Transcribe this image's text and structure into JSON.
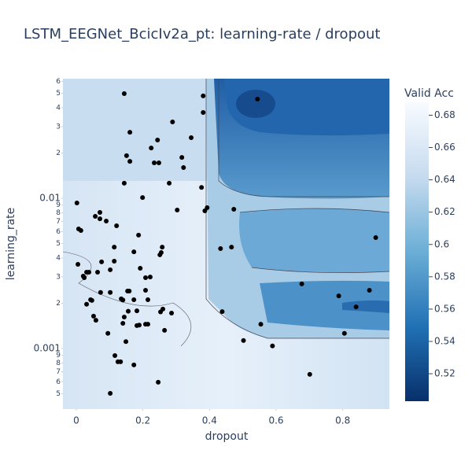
{
  "chart_data": {
    "type": "contour",
    "title": "LSTM_EEGNet_BcicIv2a_pt: learning-rate / dropout",
    "x_label": "dropout",
    "y_label": "learning_rate",
    "colorbar_title": "Valid Acc",
    "xlim": [
      -0.04,
      0.94
    ],
    "xticks": [
      0,
      0.2,
      0.4,
      0.6,
      0.8
    ],
    "ylim": [
      0.000395,
      0.0625
    ],
    "y_log": true,
    "yticks": [
      {
        "value": 0.06,
        "label": "6"
      },
      {
        "value": 0.05,
        "label": "5"
      },
      {
        "value": 0.04,
        "label": "4"
      },
      {
        "value": 0.03,
        "label": "3"
      },
      {
        "value": 0.02,
        "label": "2"
      },
      0.01,
      {
        "value": 0.009,
        "label": "9"
      },
      {
        "value": 0.008,
        "label": "8"
      },
      {
        "value": 0.007,
        "label": "7"
      },
      {
        "value": 0.006,
        "label": "6"
      },
      {
        "value": 0.005,
        "label": "5"
      },
      {
        "value": 0.004,
        "label": "4"
      },
      {
        "value": 0.003,
        "label": "3"
      },
      {
        "value": 0.002,
        "label": "2"
      },
      0.001,
      {
        "value": 0.0009,
        "label": "9"
      },
      {
        "value": 0.0008,
        "label": "8"
      },
      {
        "value": 0.0007,
        "label": "7"
      },
      {
        "value": 0.0006,
        "label": "6"
      },
      {
        "value": 0.0005,
        "label": "5"
      }
    ],
    "colorbar_lim": [
      0.503,
      0.688
    ],
    "colorbar_ticks": [
      0.52,
      0.54,
      0.56,
      0.58,
      0.6,
      0.62,
      0.64,
      0.66,
      0.68
    ],
    "colorscale": [
      "#08306b",
      "#2171b5",
      "#6baed6",
      "#c6dbef",
      "#f7fbff"
    ],
    "point_color": "#000000",
    "points": {
      "x": [
        0.144,
        0.544,
        0.381,
        0.381,
        0.289,
        0.161,
        0.345,
        0.225,
        0.244,
        0.151,
        0.161,
        0.234,
        0.248,
        0.317,
        0.322,
        0.144,
        0.279,
        0.376,
        0.199,
        0.002,
        0.071,
        0.057,
        0.071,
        0.09,
        0.303,
        0.393,
        0.386,
        0.473,
        0.007,
        0.014,
        0.121,
        0.187,
        0.114,
        0.258,
        0.433,
        0.466,
        0.173,
        0.255,
        0.251,
        0.005,
        0.076,
        0.114,
        0.031,
        0.038,
        0.021,
        0.024,
        0.064,
        0.102,
        0.192,
        0.208,
        0.222,
        0.677,
        0.073,
        0.102,
        0.154,
        0.159,
        0.208,
        0.88,
        0.788,
        0.043,
        0.047,
        0.031,
        0.135,
        0.14,
        0.173,
        0.215,
        0.84,
        0.438,
        0.26,
        0.253,
        0.286,
        0.182,
        0.052,
        0.059,
        0.144,
        0.156,
        0.14,
        0.182,
        0.189,
        0.208,
        0.215,
        0.554,
        0.095,
        0.265,
        0.805,
        0.502,
        0.149,
        0.589,
        0.116,
        0.125,
        0.133,
        0.173,
        0.701,
        0.246,
        0.102,
        0.899
      ],
      "y": [
        0.0497,
        0.0457,
        0.048,
        0.0372,
        0.0322,
        0.0275,
        0.0253,
        0.0216,
        0.0244,
        0.0192,
        0.0176,
        0.0172,
        0.0172,
        0.0187,
        0.016,
        0.0126,
        0.0126,
        0.0118,
        0.0101,
        0.0093,
        0.00805,
        0.00758,
        0.0073,
        0.00705,
        0.00834,
        0.00865,
        0.00824,
        0.00845,
        0.00625,
        0.0061,
        0.00656,
        0.00568,
        0.00473,
        0.00473,
        0.00462,
        0.00473,
        0.0044,
        0.00435,
        0.0042,
        0.00363,
        0.00377,
        0.00381,
        0.00322,
        0.00322,
        0.00303,
        0.00296,
        0.00322,
        0.00334,
        0.00342,
        0.00296,
        0.00299,
        0.00269,
        0.00236,
        0.00236,
        0.00241,
        0.00241,
        0.00244,
        0.00244,
        0.00224,
        0.00211,
        0.00209,
        0.00197,
        0.00214,
        0.0021,
        0.00211,
        0.00211,
        0.00189,
        0.00176,
        0.00183,
        0.00175,
        0.00172,
        0.00178,
        0.00164,
        0.00154,
        0.00162,
        0.00177,
        0.00147,
        0.00142,
        0.00143,
        0.00145,
        0.00145,
        0.00145,
        0.00126,
        0.00132,
        0.00126,
        0.00113,
        0.00111,
        0.00104,
        0.000897,
        0.000815,
        0.000815,
        0.000777,
        0.000672,
        0.000596,
        0.000503,
        0.00547
      ]
    }
  }
}
